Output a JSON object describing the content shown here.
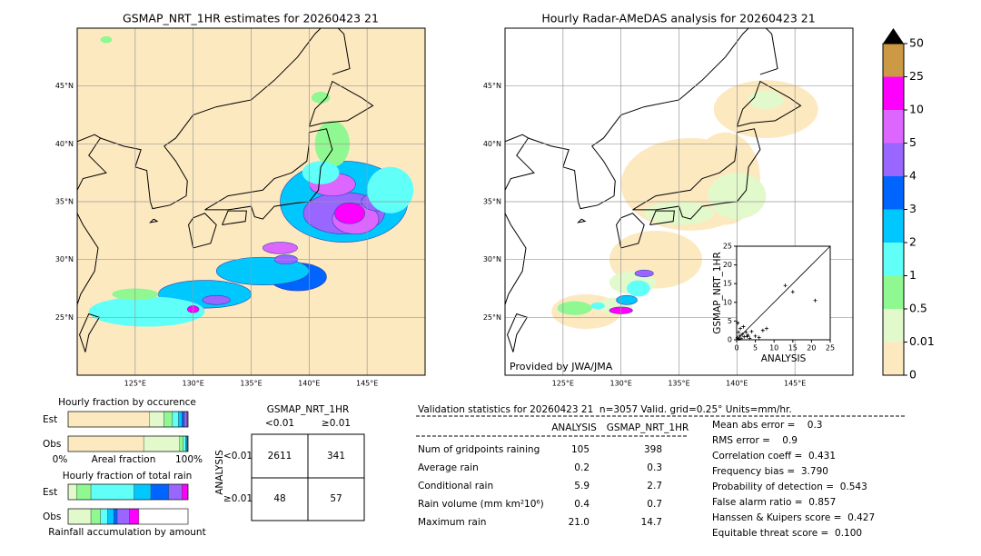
{
  "left_map": {
    "title": "GSMAP_NRT_1HR estimates for 20260423 21"
  },
  "right_map": {
    "title": "Hourly Radar-AMeDAS analysis for 20260423 21",
    "credit": "Provided by JWA/JMA"
  },
  "map_axes": {
    "lon_range": [
      120,
      150
    ],
    "lat_range": [
      20,
      50
    ],
    "lat_ticks": [
      {
        "value": 45,
        "label": "45°N"
      },
      {
        "value": 40,
        "label": "40°N"
      },
      {
        "value": 35,
        "label": "35°N"
      },
      {
        "value": 30,
        "label": "30°N"
      },
      {
        "value": 25,
        "label": "25°N"
      }
    ],
    "lon_ticks": [
      {
        "value": 125,
        "label": "125°E"
      },
      {
        "value": 130,
        "label": "130°E"
      },
      {
        "value": 135,
        "label": "135°E"
      },
      {
        "value": 140,
        "label": "140°E"
      },
      {
        "value": 145,
        "label": "145°E"
      }
    ]
  },
  "colorbar": {
    "labels": [
      "0",
      "0.01",
      "0.5",
      "1",
      "2",
      "3",
      "4",
      "5",
      "10",
      "25",
      "50"
    ],
    "colors": [
      "#fde9c0",
      "#e2f9cc",
      "#90f890",
      "#60fff8",
      "#00c8ff",
      "#0064ff",
      "#9966ff",
      "#dd66ff",
      "#ff00ff",
      "#cc9944"
    ],
    "extend_color": "#000000"
  },
  "inset": {
    "type": "scatter",
    "xlabel": "ANALYSIS",
    "ylabel": "GSMAP_NRT_1HR",
    "xlim": [
      0,
      25
    ],
    "ylim": [
      0,
      25
    ],
    "xticks": [
      0,
      5,
      10,
      15,
      20,
      25
    ],
    "yticks": [
      0,
      5,
      10,
      15,
      20,
      25
    ],
    "x": [
      0.2,
      0.5,
      0.8,
      1,
      1.2,
      1.5,
      2,
      2.5,
      3,
      3.5,
      4,
      5,
      6,
      7,
      8,
      0.3,
      1.8,
      13,
      15,
      21,
      0.6,
      2.8
    ],
    "y": [
      0.5,
      2,
      1,
      3,
      0.3,
      1.5,
      0.8,
      2,
      1.2,
      0.4,
      2.2,
      1,
      0.6,
      2.5,
      3,
      4.5,
      3.5,
      14.5,
      12.8,
      10.5,
      0.2,
      0.9
    ]
  },
  "fraction_occurrence": {
    "title": "Hourly fraction by occurence",
    "rows": [
      "Est",
      "Obs"
    ],
    "axis_left": "0%",
    "axis_label": "Areal fraction",
    "axis_right": "100%",
    "est": [
      0.68,
      0.12,
      0.07,
      0.05,
      0.03,
      0.02,
      0.02,
      0.01
    ],
    "obs": [
      0.63,
      0.3,
      0.03,
      0.02,
      0.01,
      0.005,
      0.005,
      0
    ]
  },
  "fraction_total": {
    "title": "Hourly fraction of total rain",
    "rows": [
      "Est",
      "Obs"
    ],
    "footer": "Rainfall accumulation by amount",
    "est": [
      0,
      0.07,
      0.12,
      0.36,
      0.14,
      0.15,
      0.11,
      0.05
    ],
    "obs": [
      0,
      0.19,
      0.08,
      0.06,
      0.05,
      0.03,
      0.1,
      0.08
    ]
  },
  "contingency": {
    "title": "GSMAP_NRT_1HR",
    "col_headers": [
      "<0.01",
      "≥0.01"
    ],
    "row_label": "ANALYSIS",
    "row_headers": [
      "<0.01",
      "≥0.01"
    ],
    "cells": [
      [
        2611,
        341
      ],
      [
        48,
        57
      ]
    ]
  },
  "validation": {
    "header": "Validation statistics for 20260423 21  n=3057 Valid. grid=0.25° Units=mm/hr.",
    "col_headers": [
      "ANALYSIS",
      "GSMAP_NRT_1HR"
    ],
    "rows": [
      [
        "Num of gridpoints raining",
        "105",
        "398"
      ],
      [
        "Average rain",
        "0.2",
        "0.3"
      ],
      [
        "Conditional rain",
        "5.9",
        "2.7"
      ],
      [
        "Rain volume (mm km²10⁶)",
        "0.4",
        "0.7"
      ],
      [
        "Maximum rain",
        "21.0",
        "14.7"
      ]
    ],
    "scores": [
      "Mean abs error =    0.3",
      "RMS error =    0.9",
      "Correlation coeff =  0.431",
      "Frequency bias =  3.790",
      "Probability of detection =  0.543",
      "False alarm ratio =  0.857",
      "Hanssen & Kuipers score =  0.427",
      "Equitable threat score =  0.100"
    ]
  }
}
